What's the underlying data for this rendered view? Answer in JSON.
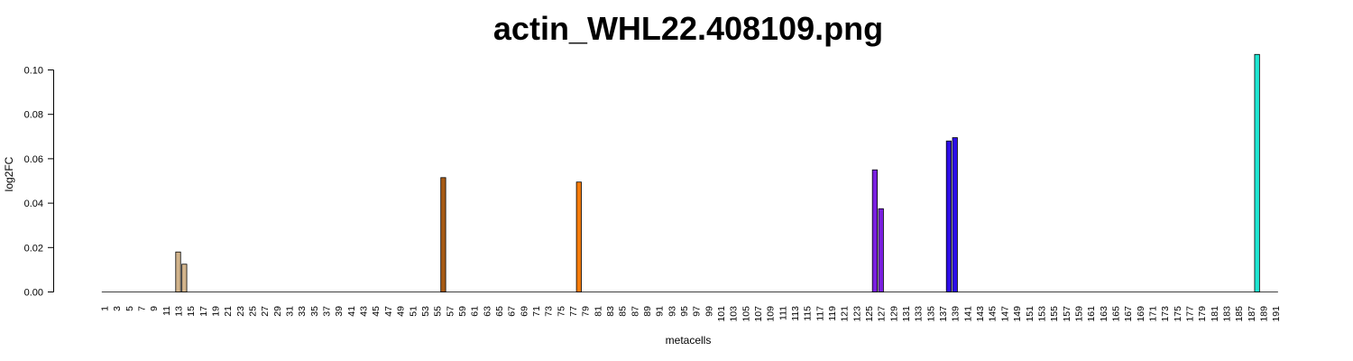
{
  "chart_data": {
    "type": "bar",
    "title": "actin_WHL22.408109.png",
    "xlabel": "metacells",
    "ylabel": "log2FC",
    "ylim": [
      0,
      0.11
    ],
    "yticks": [
      "0.00",
      "0.02",
      "0.04",
      "0.06",
      "0.08",
      "0.10"
    ],
    "n_categories": 191,
    "category_labels": [
      "1",
      "3",
      "5",
      "7",
      "9",
      "11",
      "13",
      "15",
      "17",
      "19",
      "21",
      "23",
      "25",
      "27",
      "29",
      "31",
      "33",
      "35",
      "37",
      "39",
      "41",
      "43",
      "45",
      "47",
      "49",
      "51",
      "53",
      "55",
      "57",
      "59",
      "61",
      "63",
      "65",
      "67",
      "69",
      "71",
      "73",
      "75",
      "77",
      "79",
      "81",
      "83",
      "85",
      "87",
      "89",
      "91",
      "93",
      "95",
      "97",
      "99",
      "101",
      "103",
      "105",
      "107",
      "109",
      "111",
      "113",
      "115",
      "117",
      "119",
      "121",
      "123",
      "125",
      "127",
      "129",
      "131",
      "133",
      "135",
      "137",
      "139",
      "141",
      "143",
      "145",
      "147",
      "149",
      "151",
      "153",
      "155",
      "157",
      "159",
      "161",
      "163",
      "165",
      "167",
      "169",
      "171",
      "173",
      "175",
      "177",
      "179",
      "181",
      "183",
      "185",
      "187",
      "189",
      "191"
    ],
    "bars": [
      {
        "x": 13,
        "value": 0.018,
        "color": "#D2B48C"
      },
      {
        "x": 14,
        "value": 0.0125,
        "color": "#D2B48C"
      },
      {
        "x": 56,
        "value": 0.0515,
        "color": "#A65A14"
      },
      {
        "x": 78,
        "value": 0.0495,
        "color": "#F57B0A"
      },
      {
        "x": 126,
        "value": 0.055,
        "color": "#7A1FE0"
      },
      {
        "x": 127,
        "value": 0.0375,
        "color": "#7A1FE0"
      },
      {
        "x": 138,
        "value": 0.068,
        "color": "#2D0DE8"
      },
      {
        "x": 139,
        "value": 0.0695,
        "color": "#2D0DE8"
      },
      {
        "x": 188,
        "value": 0.107,
        "color": "#1EE6D2"
      }
    ],
    "grid": false,
    "legend": "none"
  }
}
